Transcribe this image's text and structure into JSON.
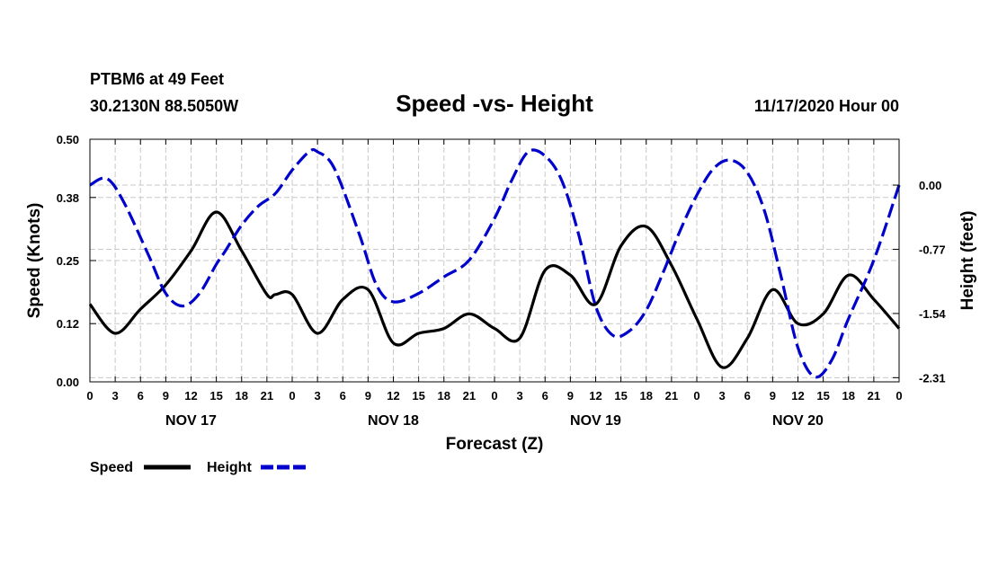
{
  "chart_data": {
    "type": "line",
    "header_left_line1": "PTBM6 at 49 Feet",
    "header_left_line2": "30.2130N 88.5050W",
    "title": "Speed -vs- Height",
    "header_right": "11/17/2020 Hour 00",
    "xlabel": "Forecast (Z)",
    "ylabel_left": "Speed (Knots)",
    "ylabel_right": "Height (feet)",
    "x_range_hours": [
      0,
      96
    ],
    "x_tick_step_hours": 3,
    "x_tick_labels": [
      "0",
      "3",
      "6",
      "9",
      "12",
      "15",
      "18",
      "21",
      "0",
      "3",
      "6",
      "9",
      "12",
      "15",
      "18",
      "21",
      "0",
      "3",
      "6",
      "9",
      "12",
      "15",
      "18",
      "21",
      "0",
      "3",
      "6",
      "9",
      "12",
      "15",
      "18",
      "21",
      "0"
    ],
    "day_labels": [
      {
        "label": "NOV 17",
        "hour": 12
      },
      {
        "label": "NOV 18",
        "hour": 36
      },
      {
        "label": "NOV 19",
        "hour": 60
      },
      {
        "label": "NOV 20",
        "hour": 84
      }
    ],
    "ylim_left": [
      0,
      0.5
    ],
    "yticks_left": [
      "0.00",
      "0.12",
      "0.25",
      "0.38",
      "0.50"
    ],
    "ylim_right": [
      -2.36,
      0.55
    ],
    "yticks_right": [
      "0.00",
      "-0.77",
      "-1.54",
      "-2.31"
    ],
    "grid": true,
    "legend_position": "bottom-left",
    "series": [
      {
        "name": "Speed",
        "axis": "left",
        "color": "#000000",
        "style": "solid",
        "x": [
          0,
          3,
          6,
          9,
          12,
          15,
          18,
          21,
          22,
          24,
          27,
          30,
          33,
          36,
          39,
          42,
          45,
          48,
          51,
          54,
          57,
          60,
          63,
          66,
          69,
          72,
          75,
          78,
          81,
          84,
          87,
          90,
          93,
          96
        ],
        "y": [
          0.16,
          0.1,
          0.15,
          0.2,
          0.27,
          0.35,
          0.27,
          0.18,
          0.18,
          0.18,
          0.1,
          0.17,
          0.19,
          0.08,
          0.1,
          0.11,
          0.14,
          0.11,
          0.09,
          0.23,
          0.22,
          0.16,
          0.28,
          0.32,
          0.24,
          0.13,
          0.03,
          0.09,
          0.19,
          0.12,
          0.14,
          0.22,
          0.17,
          0.11
        ]
      },
      {
        "name": "Height",
        "axis": "right",
        "color": "#0000cc",
        "style": "dashed",
        "x": [
          0,
          2,
          4,
          7,
          9,
          11,
          13,
          15,
          16,
          18,
          20,
          22,
          24,
          26,
          27,
          29,
          32,
          34,
          36,
          39,
          42,
          45,
          48,
          50,
          52,
          54,
          56,
          58,
          60,
          62,
          64,
          66,
          68,
          70,
          72,
          74,
          76,
          78,
          80,
          82,
          84,
          86,
          88,
          90,
          93,
          96
        ],
        "y": [
          0.0,
          0.08,
          -0.2,
          -0.85,
          -1.3,
          -1.45,
          -1.3,
          -0.95,
          -0.8,
          -0.48,
          -0.25,
          -0.1,
          0.18,
          0.4,
          0.4,
          0.2,
          -0.6,
          -1.2,
          -1.4,
          -1.3,
          -1.1,
          -0.9,
          -0.4,
          0.05,
          0.4,
          0.35,
          0.05,
          -0.6,
          -1.45,
          -1.8,
          -1.75,
          -1.5,
          -1.05,
          -0.55,
          -0.12,
          0.2,
          0.3,
          0.15,
          -0.3,
          -1.1,
          -1.95,
          -2.3,
          -2.1,
          -1.6,
          -0.9,
          0.0
        ]
      }
    ]
  }
}
